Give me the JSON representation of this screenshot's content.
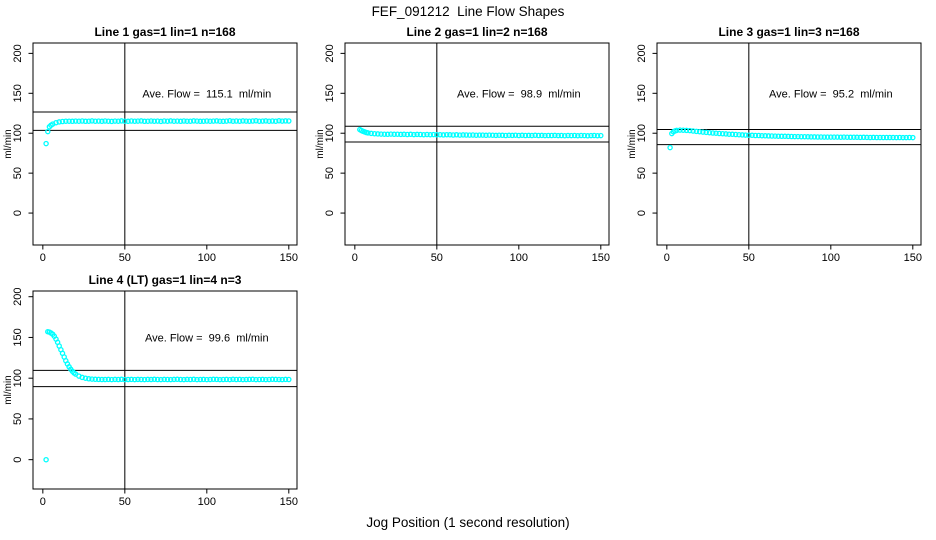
{
  "figure": {
    "title": "FEF_091212  Line Flow Shapes",
    "xlabel": "Jog Position (1 second resolution)",
    "background_color": "#ffffff",
    "axis_color": "#000000",
    "point_color": "#00ffff"
  },
  "chart_data": [
    {
      "type": "scatter",
      "title": "Line 1 gas=1 lin=1 n=168",
      "annotation": "Ave. Flow =  115.1  ml/min",
      "ave_flow": 115.1,
      "ylabel": "ml/min",
      "grid_pos": "row1-col1",
      "xticks": [
        0,
        50,
        100,
        150
      ],
      "yticks": [
        0,
        50,
        100,
        150,
        200
      ],
      "xlim": [
        -6,
        155
      ],
      "ylim": [
        -40,
        213
      ],
      "ref_lines_y": [
        126.6,
        103.6
      ],
      "ref_line_x": 50,
      "annotation_xy": [
        100,
        150
      ],
      "x": [
        2,
        3,
        4,
        5,
        6,
        8,
        10,
        12,
        14,
        16,
        18,
        20,
        22,
        24,
        26,
        28,
        30,
        32,
        34,
        36,
        38,
        40,
        42,
        44,
        46,
        48,
        50,
        52,
        54,
        56,
        58,
        60,
        62,
        64,
        66,
        68,
        70,
        72,
        74,
        76,
        78,
        80,
        82,
        84,
        86,
        88,
        90,
        92,
        94,
        96,
        98,
        100,
        102,
        104,
        106,
        108,
        110,
        112,
        114,
        116,
        118,
        120,
        122,
        124,
        126,
        128,
        130,
        132,
        134,
        136,
        138,
        140,
        142,
        144,
        146,
        148,
        150
      ],
      "y": [
        87,
        102,
        108,
        110,
        111.4,
        113.2,
        114.2,
        114.7,
        115,
        115.1,
        114.9,
        115.2,
        115,
        115.3,
        114.9,
        115.1,
        115.4,
        115,
        115.2,
        114.9,
        115.3,
        115.1,
        114.8,
        115.2,
        115,
        115.4,
        115.1,
        114.9,
        115.3,
        115,
        115.2,
        115.4,
        114.9,
        115.1,
        115.3,
        115,
        115.2,
        114.8,
        115.3,
        115.1,
        115.4,
        115,
        115.2,
        114.9,
        115.3,
        115.1,
        115,
        115.4,
        115.2,
        114.9,
        115.1,
        115.3,
        115,
        115.2,
        115.4,
        115.1,
        114.9,
        115.2,
        115.5,
        115,
        115.3,
        115.1,
        115.4,
        115.2,
        115,
        115.3,
        115.5,
        115.1,
        115.2,
        115.4,
        115,
        115.3,
        115.1,
        115.5,
        115.2,
        115.4,
        115.3
      ]
    },
    {
      "type": "scatter",
      "title": "Line 2 gas=1 lin=2 n=168",
      "annotation": "Ave. Flow =  98.9  ml/min",
      "ave_flow": 98.9,
      "ylabel": "ml/min",
      "grid_pos": "row1-col2",
      "xticks": [
        0,
        50,
        100,
        150
      ],
      "yticks": [
        0,
        50,
        100,
        150,
        200
      ],
      "xlim": [
        -6,
        155
      ],
      "ylim": [
        -40,
        213
      ],
      "ref_lines_y": [
        108.8,
        89.0
      ],
      "ref_line_x": 50,
      "annotation_xy": [
        100,
        150
      ],
      "x": [
        3,
        4,
        5,
        6,
        7,
        8,
        10,
        12,
        14,
        16,
        18,
        20,
        22,
        24,
        26,
        28,
        30,
        32,
        34,
        36,
        38,
        40,
        42,
        44,
        46,
        48,
        50,
        52,
        54,
        56,
        58,
        60,
        62,
        64,
        66,
        68,
        70,
        72,
        74,
        76,
        78,
        80,
        82,
        84,
        86,
        88,
        90,
        92,
        94,
        96,
        98,
        100,
        102,
        104,
        106,
        108,
        110,
        112,
        114,
        116,
        118,
        120,
        122,
        124,
        126,
        128,
        130,
        132,
        134,
        136,
        138,
        140,
        142,
        144,
        146,
        148,
        150
      ],
      "y": [
        104.5,
        103.4,
        102.4,
        101.6,
        100.9,
        100.4,
        99.8,
        99.4,
        99.1,
        98.9,
        98.8,
        98.7,
        98.9,
        98.6,
        98.8,
        98.5,
        98.7,
        98.4,
        98.6,
        98.3,
        98.5,
        98.4,
        98.2,
        98.4,
        98.1,
        98.3,
        98,
        98.2,
        97.9,
        98.1,
        98,
        97.8,
        98,
        97.7,
        97.9,
        97.8,
        97.6,
        97.8,
        97.5,
        97.7,
        97.6,
        97.4,
        97.6,
        97.5,
        97.3,
        97.5,
        97.4,
        97.2,
        97.4,
        97.3,
        97.5,
        97.2,
        97.4,
        97.1,
        97.3,
        97.2,
        97.4,
        97.1,
        97.3,
        97,
        97.2,
        97.1,
        97.3,
        97,
        97.2,
        96.9,
        97.1,
        97,
        97.2,
        96.9,
        97.1,
        97,
        96.8,
        97,
        97.1,
        96.9,
        97
      ]
    },
    {
      "type": "scatter",
      "title": "Line 3 gas=1 lin=3 n=168",
      "annotation": "Ave. Flow =  95.2  ml/min",
      "ave_flow": 95.2,
      "ylabel": "ml/min",
      "grid_pos": "row1-col3",
      "xticks": [
        0,
        50,
        100,
        150
      ],
      "yticks": [
        0,
        50,
        100,
        150,
        200
      ],
      "xlim": [
        -6,
        155
      ],
      "ylim": [
        -40,
        213
      ],
      "ref_lines_y": [
        104.7,
        85.7
      ],
      "ref_line_x": 50,
      "annotation_xy": [
        100,
        150
      ],
      "x": [
        2,
        3,
        4,
        5,
        6,
        8,
        10,
        12,
        14,
        16,
        18,
        20,
        22,
        24,
        26,
        28,
        30,
        32,
        34,
        36,
        38,
        40,
        42,
        44,
        46,
        48,
        50,
        52,
        54,
        56,
        58,
        60,
        62,
        64,
        66,
        68,
        70,
        72,
        74,
        76,
        78,
        80,
        82,
        84,
        86,
        88,
        90,
        92,
        94,
        96,
        98,
        100,
        102,
        104,
        106,
        108,
        110,
        112,
        114,
        116,
        118,
        120,
        122,
        124,
        126,
        128,
        130,
        132,
        134,
        136,
        138,
        140,
        142,
        144,
        146,
        148,
        150
      ],
      "y": [
        82,
        99.5,
        101.8,
        102.9,
        103.5,
        103.9,
        103.8,
        103.5,
        103.3,
        102.8,
        102.3,
        101.9,
        101.4,
        101,
        100.7,
        100.3,
        100,
        99.7,
        99.4,
        99.1,
        98.8,
        98.6,
        98.4,
        98.1,
        97.9,
        97.7,
        97.5,
        97.4,
        97.2,
        97.1,
        96.9,
        96.8,
        96.6,
        96.5,
        96.4,
        96.3,
        96.2,
        96.1,
        96,
        95.9,
        95.8,
        95.8,
        95.7,
        95.6,
        95.5,
        95.4,
        95.4,
        95.3,
        95.3,
        95.2,
        95.2,
        95.1,
        95.2,
        95.1,
        95,
        95.1,
        95,
        94.9,
        95,
        94.9,
        94.8,
        94.9,
        94.8,
        94.7,
        94.8,
        94.7,
        94.7,
        94.6,
        94.7,
        94.6,
        94.6,
        94.5,
        94.6,
        94.5,
        94.5,
        94.6,
        94.5
      ]
    },
    {
      "type": "scatter",
      "title": "Line 4 (LT) gas=1 lin=4 n=3",
      "annotation": "Ave. Flow =  99.6  ml/min",
      "ave_flow": 99.6,
      "ylabel": "ml/min",
      "grid_pos": "row2-col1",
      "xticks": [
        0,
        50,
        100,
        150
      ],
      "yticks": [
        0,
        50,
        100,
        150,
        200
      ],
      "xlim": [
        -6,
        155
      ],
      "ylim": [
        -36,
        207
      ],
      "ref_lines_y": [
        109.6,
        89.6
      ],
      "ref_line_x": 50,
      "annotation_xy": [
        100,
        150
      ],
      "x": [
        2,
        3,
        4,
        5,
        6,
        7,
        8,
        9,
        10,
        11,
        12,
        13,
        14,
        15,
        16,
        17,
        18,
        19,
        20,
        22,
        24,
        26,
        28,
        30,
        32,
        34,
        36,
        38,
        40,
        42,
        44,
        46,
        48,
        50,
        52,
        54,
        56,
        58,
        60,
        62,
        64,
        66,
        68,
        70,
        72,
        74,
        76,
        78,
        80,
        82,
        84,
        86,
        88,
        90,
        92,
        94,
        96,
        98,
        100,
        102,
        104,
        106,
        108,
        110,
        112,
        114,
        116,
        118,
        120,
        122,
        124,
        126,
        128,
        130,
        132,
        134,
        136,
        138,
        140,
        142,
        144,
        146,
        148,
        150
      ],
      "y": [
        0,
        157,
        156.5,
        155.5,
        154,
        151.5,
        148,
        144,
        139.5,
        135,
        130.5,
        126,
        121.5,
        117.5,
        114,
        111,
        108.5,
        106.5,
        105,
        102.5,
        101,
        100,
        99.3,
        98.9,
        98.6,
        98.5,
        98.4,
        98.4,
        98.5,
        98.3,
        98.5,
        98.4,
        98.6,
        98.3,
        98.4,
        98.5,
        98.3,
        98.5,
        98.4,
        98.3,
        98.5,
        98.4,
        98.6,
        98.4,
        98.3,
        98.5,
        98.4,
        98.3,
        98.5,
        98.6,
        98.4,
        98.3,
        98.5,
        98.4,
        98.6,
        98.3,
        98.4,
        98.5,
        98.3,
        98.4,
        98.6,
        98.5,
        98.3,
        98.4,
        98.5,
        98.3,
        98.6,
        98.4,
        98.5,
        98.3,
        98.4,
        98.5,
        98.6,
        98.3,
        98.4,
        98.5,
        98.3,
        98.4,
        98.6,
        98.5,
        98.4,
        98.3,
        98.5,
        98.4
      ]
    }
  ]
}
